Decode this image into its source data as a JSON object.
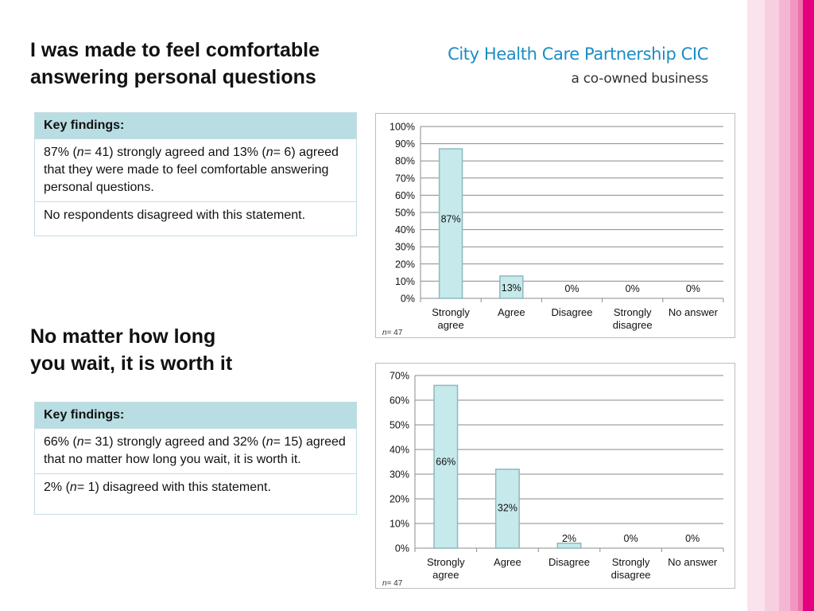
{
  "section1": {
    "title_lines": [
      "I was made to feel comfortable",
      "answering personal questions"
    ],
    "findings": {
      "header": "Key findings:",
      "row1": [
        "87% (",
        "n",
        "= 41) strongly agreed and 13% (",
        "n",
        "= 6) agreed that they were made to feel comfortable answering personal questions."
      ],
      "row2": "No respondents disagreed with this statement."
    }
  },
  "section2": {
    "title_lines": [
      "No matter how long",
      "you wait, it is worth it"
    ],
    "findings": {
      "header": "Key findings:",
      "row1": [
        "66% (",
        "n",
        "= 31) strongly agreed and  32% (",
        "n",
        "= 15) agreed that no matter how long you wait, it is worth it."
      ],
      "row2": [
        "2% (",
        "n",
        "= 1) disagreed with this statement."
      ]
    }
  },
  "logo": {
    "name": "City Health Care Partnership CIC",
    "tagline": "a co-owned business"
  },
  "colors": {
    "bar_fill": "#c6e9ec",
    "bar_edge": "#8fb9bd",
    "logo_blue": "#1a8dc6",
    "header_fill": "#b8dde2",
    "stripes": [
      "#fbe3ee",
      "#f9d3e4",
      "#f6bcd7",
      "#f39dc5",
      "#ee72ab",
      "#e4007e"
    ]
  },
  "chart_data": [
    {
      "type": "bar",
      "categories": [
        [
          "Strongly",
          "agree"
        ],
        [
          "Agree"
        ],
        [
          "Disagree"
        ],
        [
          "Strongly",
          "disagree"
        ],
        [
          "No answer"
        ]
      ],
      "values": [
        87,
        13,
        0,
        0,
        0
      ],
      "data_labels": [
        "87%",
        "13%",
        "0%",
        "0%",
        "0%"
      ],
      "ylim": [
        0,
        100
      ],
      "yticks": [
        "0%",
        "10%",
        "20%",
        "30%",
        "40%",
        "50%",
        "60%",
        "70%",
        "80%",
        "90%",
        "100%"
      ],
      "note": [
        "n",
        "= 47"
      ],
      "grid": true
    },
    {
      "type": "bar",
      "categories": [
        [
          "Strongly",
          "agree"
        ],
        [
          "Agree"
        ],
        [
          "Disagree"
        ],
        [
          "Strongly",
          "disagree"
        ],
        [
          "No answer"
        ]
      ],
      "values": [
        66,
        32,
        2,
        0,
        0
      ],
      "data_labels": [
        "66%",
        "32%",
        "2%",
        "0%",
        "0%"
      ],
      "ylim": [
        0,
        70
      ],
      "yticks": [
        "0%",
        "10%",
        "20%",
        "30%",
        "40%",
        "50%",
        "60%",
        "70%"
      ],
      "note": [
        "n",
        "= 47"
      ],
      "grid": true
    }
  ]
}
